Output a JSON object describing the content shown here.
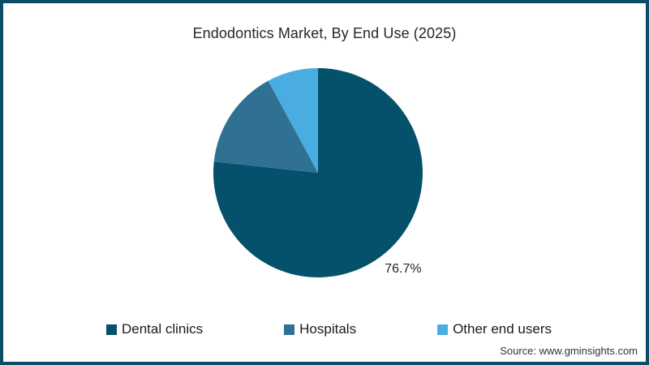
{
  "title": "Endodontics Market, By End Use (2025)",
  "source": "Source: www.gminsights.com",
  "colors": {
    "frame_border": "#0c4c66",
    "background": "#ffffff",
    "title_text": "#262626",
    "source_text": "#253746"
  },
  "chart_data": {
    "type": "pie",
    "title": "Endodontics Market, By End Use (2025)",
    "direction": "clockwise",
    "start_angle_deg": 0,
    "legend_position": "bottom",
    "slices": [
      {
        "label": "Dental clinics",
        "value": 76.7,
        "color": "#05506a",
        "data_label": "76.7%",
        "label_shown": true
      },
      {
        "label": "Hospitals",
        "value": 15.4,
        "color": "#2f7093",
        "data_label": "",
        "label_shown": false,
        "estimated": true
      },
      {
        "label": "Other end users",
        "value": 7.9,
        "color": "#4aade1",
        "data_label": "",
        "label_shown": false,
        "estimated": true
      }
    ]
  }
}
